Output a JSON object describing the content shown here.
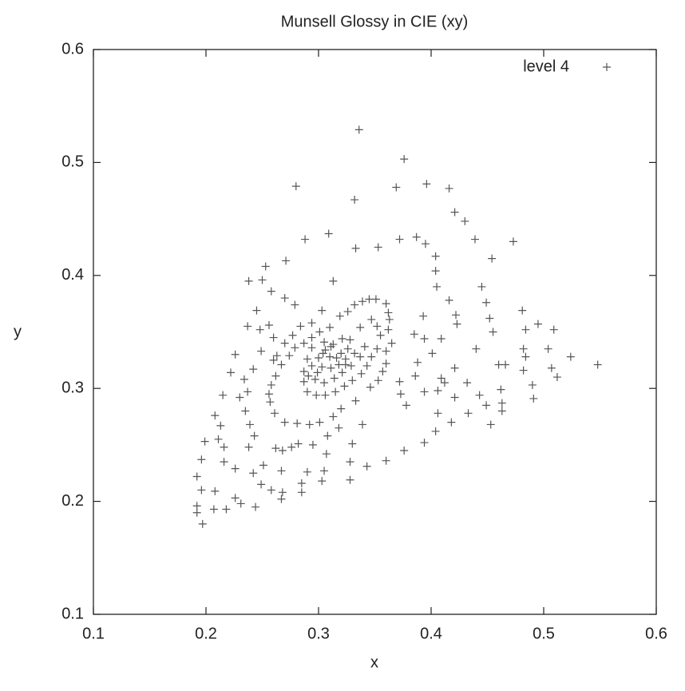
{
  "chart_data": {
    "type": "scatter",
    "title": "Munsell Glossy in CIE (xy)",
    "x_label": "x",
    "y_label": "y",
    "xlim": [
      0.1,
      0.6
    ],
    "ylim": [
      0.1,
      0.6
    ],
    "xticks": [
      0.1,
      0.2,
      0.3,
      0.4,
      0.5,
      0.6
    ],
    "yticks": [
      0.1,
      0.2,
      0.3,
      0.4,
      0.5,
      0.6
    ],
    "grid": false,
    "legend": "top-right",
    "series": [
      {
        "name": "level 4",
        "color": "#555555",
        "marker": "+",
        "x": [
          0.336,
          0.376,
          0.28,
          0.332,
          0.369,
          0.396,
          0.416,
          0.421,
          0.43,
          0.439,
          0.473,
          0.454,
          0.309,
          0.333,
          0.353,
          0.372,
          0.387,
          0.395,
          0.404,
          0.404,
          0.405,
          0.416,
          0.422,
          0.423,
          0.445,
          0.449,
          0.452,
          0.455,
          0.481,
          0.484,
          0.495,
          0.509,
          0.524,
          0.548,
          0.504,
          0.482,
          0.484,
          0.46,
          0.466,
          0.507,
          0.512,
          0.482,
          0.49,
          0.491,
          0.462,
          0.463,
          0.463,
          0.453,
          0.449,
          0.443,
          0.432,
          0.421,
          0.412,
          0.406,
          0.406,
          0.404,
          0.418,
          0.433,
          0.421,
          0.409,
          0.401,
          0.394,
          0.385,
          0.393,
          0.44,
          0.409,
          0.388,
          0.386,
          0.372,
          0.373,
          0.378,
          0.394,
          0.394,
          0.376,
          0.36,
          0.343,
          0.328,
          0.328,
          0.33,
          0.339,
          0.318,
          0.308,
          0.295,
          0.307,
          0.305,
          0.303,
          0.29,
          0.285,
          0.285,
          0.267,
          0.251,
          0.249,
          0.268,
          0.267,
          0.242,
          0.238,
          0.243,
          0.239,
          0.235,
          0.23,
          0.237,
          0.234,
          0.242,
          0.226,
          0.222,
          0.215,
          0.208,
          0.213,
          0.211,
          0.199,
          0.216,
          0.196,
          0.216,
          0.226,
          0.192,
          0.196,
          0.208,
          0.192,
          0.192,
          0.207,
          0.218,
          0.226,
          0.231,
          0.244,
          0.197,
          0.258,
          0.262,
          0.268,
          0.276,
          0.282,
          0.27,
          0.281,
          0.292,
          0.301,
          0.313,
          0.32,
          0.333,
          0.346,
          0.353,
          0.357,
          0.36,
          0.36,
          0.365,
          0.362,
          0.363,
          0.362,
          0.36,
          0.351,
          0.345,
          0.339,
          0.332,
          0.326,
          0.319,
          0.31,
          0.301,
          0.294,
          0.287,
          0.279,
          0.274,
          0.267,
          0.262,
          0.258,
          0.256,
          0.257,
          0.261,
          0.26,
          0.263,
          0.27,
          0.277,
          0.284,
          0.294,
          0.303,
          0.313,
          0.279,
          0.27,
          0.258,
          0.25,
          0.238,
          0.253,
          0.271,
          0.288,
          0.245,
          0.237,
          0.248,
          0.256,
          0.26,
          0.249,
          0.287,
          0.287,
          0.29,
          0.298,
          0.306,
          0.315,
          0.323,
          0.33,
          0.338,
          0.343,
          0.347,
          0.352,
          0.355,
          0.352,
          0.347,
          0.337,
          0.328,
          0.321,
          0.313,
          0.306,
          0.3,
          0.294,
          0.291,
          0.297,
          0.305,
          0.314,
          0.321,
          0.329,
          0.337,
          0.341,
          0.332,
          0.324,
          0.318,
          0.311,
          0.303,
          0.299,
          0.304,
          0.31,
          0.316,
          0.32,
          0.326,
          0.324,
          0.311,
          0.305,
          0.294,
          0.29
        ],
        "values": [
          0.529,
          0.503,
          0.479,
          0.467,
          0.478,
          0.481,
          0.477,
          0.456,
          0.448,
          0.432,
          0.43,
          0.415,
          0.437,
          0.424,
          0.425,
          0.432,
          0.434,
          0.428,
          0.417,
          0.404,
          0.39,
          0.378,
          0.365,
          0.357,
          0.39,
          0.376,
          0.362,
          0.35,
          0.369,
          0.352,
          0.357,
          0.352,
          0.328,
          0.321,
          0.335,
          0.335,
          0.328,
          0.321,
          0.321,
          0.318,
          0.31,
          0.316,
          0.303,
          0.291,
          0.299,
          0.287,
          0.28,
          0.268,
          0.285,
          0.294,
          0.305,
          0.318,
          0.305,
          0.298,
          0.278,
          0.262,
          0.27,
          0.278,
          0.292,
          0.309,
          0.331,
          0.344,
          0.348,
          0.364,
          0.335,
          0.344,
          0.323,
          0.311,
          0.306,
          0.295,
          0.285,
          0.297,
          0.252,
          0.245,
          0.236,
          0.231,
          0.219,
          0.235,
          0.251,
          0.268,
          0.265,
          0.258,
          0.25,
          0.242,
          0.227,
          0.218,
          0.226,
          0.216,
          0.208,
          0.227,
          0.232,
          0.215,
          0.208,
          0.202,
          0.225,
          0.248,
          0.258,
          0.268,
          0.28,
          0.292,
          0.297,
          0.308,
          0.317,
          0.33,
          0.314,
          0.294,
          0.276,
          0.267,
          0.255,
          0.253,
          0.248,
          0.237,
          0.235,
          0.229,
          0.222,
          0.21,
          0.209,
          0.196,
          0.19,
          0.193,
          0.193,
          0.203,
          0.198,
          0.195,
          0.18,
          0.21,
          0.247,
          0.245,
          0.248,
          0.251,
          0.27,
          0.269,
          0.268,
          0.27,
          0.275,
          0.282,
          0.289,
          0.301,
          0.307,
          0.315,
          0.322,
          0.333,
          0.34,
          0.352,
          0.361,
          0.367,
          0.375,
          0.379,
          0.379,
          0.377,
          0.374,
          0.368,
          0.364,
          0.354,
          0.35,
          0.345,
          0.34,
          0.336,
          0.329,
          0.321,
          0.311,
          0.303,
          0.295,
          0.288,
          0.278,
          0.325,
          0.329,
          0.34,
          0.347,
          0.355,
          0.358,
          0.369,
          0.395,
          0.374,
          0.38,
          0.386,
          0.396,
          0.395,
          0.408,
          0.413,
          0.432,
          0.369,
          0.355,
          0.352,
          0.356,
          0.345,
          0.333,
          0.315,
          0.306,
          0.297,
          0.294,
          0.294,
          0.297,
          0.302,
          0.307,
          0.313,
          0.32,
          0.328,
          0.335,
          0.347,
          0.355,
          0.361,
          0.354,
          0.343,
          0.344,
          0.339,
          0.334,
          0.327,
          0.32,
          0.311,
          0.308,
          0.305,
          0.309,
          0.314,
          0.32,
          0.328,
          0.337,
          0.331,
          0.326,
          0.321,
          0.318,
          0.319,
          0.314,
          0.331,
          0.328,
          0.327,
          0.331,
          0.335,
          0.321,
          0.337,
          0.341,
          0.336,
          0.326
        ]
      }
    ]
  }
}
